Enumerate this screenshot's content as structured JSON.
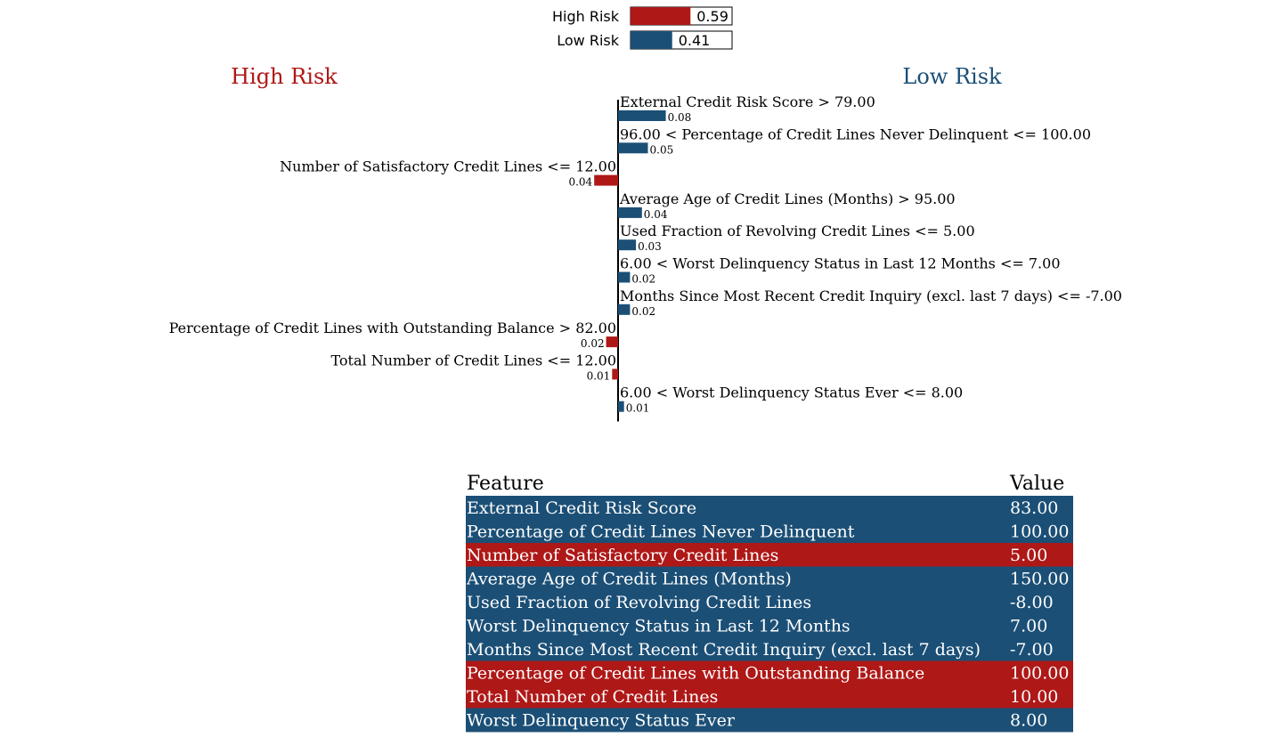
{
  "colors": {
    "high_risk": "#ae1817",
    "low_risk": "#1b4f76",
    "text": "#000000",
    "table_text": "#ffffff"
  },
  "probabilities": {
    "items": [
      {
        "label": "High Risk",
        "value": 0.59,
        "value_label": "0.59",
        "class": "high_risk"
      },
      {
        "label": "Low Risk",
        "value": 0.41,
        "value_label": "0.41",
        "class": "low_risk"
      }
    ]
  },
  "chart_data": {
    "type": "bar",
    "orientation": "horizontal",
    "left_heading": "High Risk",
    "right_heading": "Low Risk",
    "bars": [
      {
        "label": "External Credit Risk Score > 79.00",
        "value": 0.08,
        "value_label": "0.08",
        "class": "low_risk"
      },
      {
        "label": "96.00 < Percentage of Credit Lines Never Delinquent <= 100.00",
        "value": 0.05,
        "value_label": "0.05",
        "class": "low_risk"
      },
      {
        "label": "Number of Satisfactory Credit Lines <= 12.00",
        "value": 0.04,
        "value_label": "0.04",
        "class": "high_risk"
      },
      {
        "label": "Average Age of Credit Lines (Months) > 95.00",
        "value": 0.04,
        "value_label": "0.04",
        "class": "low_risk"
      },
      {
        "label": "Used Fraction of Revolving Credit Lines <= 5.00",
        "value": 0.03,
        "value_label": "0.03",
        "class": "low_risk"
      },
      {
        "label": "6.00 < Worst Delinquency Status in Last 12 Months <= 7.00",
        "value": 0.02,
        "value_label": "0.02",
        "class": "low_risk"
      },
      {
        "label": "Months Since Most Recent Credit Inquiry (excl. last 7 days) <= -7.00",
        "value": 0.02,
        "value_label": "0.02",
        "class": "low_risk"
      },
      {
        "label": "Percentage of Credit Lines with Outstanding Balance > 82.00",
        "value": 0.02,
        "value_label": "0.02",
        "class": "high_risk"
      },
      {
        "label": "Total Number of Credit Lines <= 12.00",
        "value": 0.01,
        "value_label": "0.01",
        "class": "high_risk"
      },
      {
        "label": "6.00 < Worst Delinquency Status Ever <= 8.00",
        "value": 0.01,
        "value_label": "0.01",
        "class": "low_risk"
      }
    ]
  },
  "table": {
    "headers": [
      "Feature",
      "Value"
    ],
    "rows": [
      {
        "feature": "External Credit Risk Score",
        "value": "83.00",
        "class": "low_risk"
      },
      {
        "feature": "Percentage of Credit Lines Never Delinquent",
        "value": "100.00",
        "class": "low_risk"
      },
      {
        "feature": "Number of Satisfactory Credit Lines",
        "value": "5.00",
        "class": "high_risk"
      },
      {
        "feature": "Average Age of Credit Lines (Months)",
        "value": "150.00",
        "class": "low_risk"
      },
      {
        "feature": "Used Fraction of Revolving Credit Lines",
        "value": "-8.00",
        "class": "low_risk"
      },
      {
        "feature": "Worst Delinquency Status in Last 12 Months",
        "value": "7.00",
        "class": "low_risk"
      },
      {
        "feature": "Months Since Most Recent Credit Inquiry (excl. last 7 days)",
        "value": "-7.00",
        "class": "low_risk"
      },
      {
        "feature": "Percentage of Credit Lines with Outstanding Balance",
        "value": "100.00",
        "class": "high_risk"
      },
      {
        "feature": "Total Number of Credit Lines",
        "value": "10.00",
        "class": "high_risk"
      },
      {
        "feature": "Worst Delinquency Status Ever",
        "value": "8.00",
        "class": "low_risk"
      }
    ]
  }
}
